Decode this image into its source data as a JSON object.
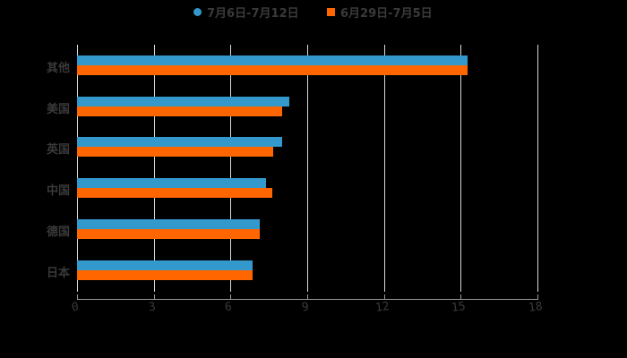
{
  "chart_data": {
    "type": "bar",
    "orientation": "horizontal",
    "title": "",
    "xlabel": "",
    "ylabel": "",
    "categories": [
      "其他",
      "美国",
      "英国",
      "中国",
      "德国",
      "日本"
    ],
    "series": [
      {
        "name": "7月6日-7月12日",
        "color": "#3399cc",
        "values": [
          15.26,
          8.3,
          8.02,
          7.39,
          7.14,
          6.86
        ]
      },
      {
        "name": "6月29日-7月5日",
        "color": "#ff6600",
        "values": [
          15.26,
          8.02,
          7.67,
          7.63,
          7.14,
          6.86
        ]
      }
    ],
    "xlim": [
      0,
      18
    ],
    "xticks": [
      "0",
      "3",
      "6",
      "9",
      "12",
      "15",
      "18"
    ],
    "grid": true,
    "legend_position": "top"
  },
  "legend": {
    "series_0": "7月6日-7月12日",
    "series_1": "6月29日-7月5日"
  }
}
